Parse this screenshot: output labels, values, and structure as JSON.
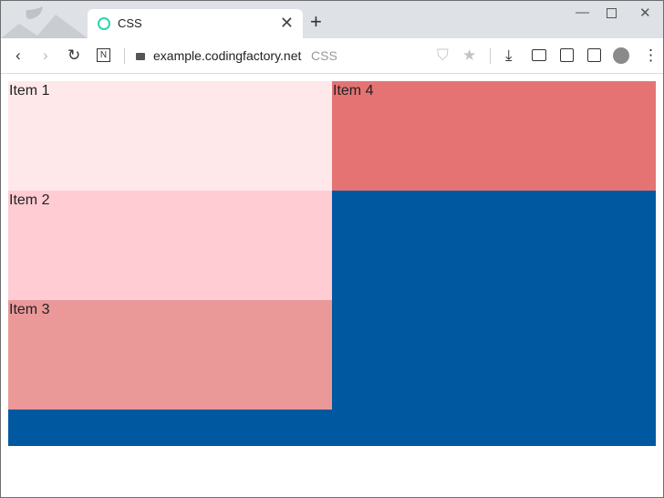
{
  "browser": {
    "tab": {
      "title": "CSS",
      "favicon": "ring-icon",
      "favicon_color": "#2ed3b0"
    },
    "address": {
      "domain": "example.codingfactory.net",
      "page_title": "CSS"
    }
  },
  "page": {
    "background_color": "#0059a0",
    "items": [
      {
        "label": "Item 1",
        "color": "#ffe8ea"
      },
      {
        "label": "Item 2",
        "color": "#ffccd3"
      },
      {
        "label": "Item 3",
        "color": "#eb9899"
      },
      {
        "label": "Item 4",
        "color": "#e57373"
      }
    ]
  }
}
